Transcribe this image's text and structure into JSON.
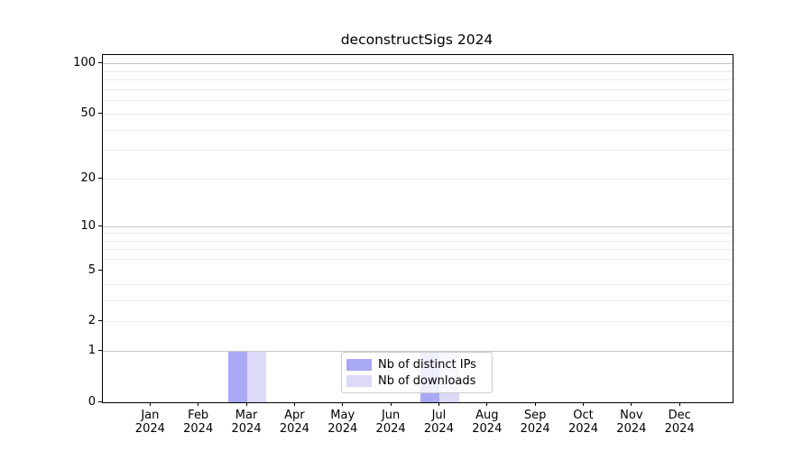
{
  "chart_data": {
    "type": "bar",
    "title": "deconstructSigs 2024",
    "categories": [
      "Jan",
      "Feb",
      "Mar",
      "Apr",
      "May",
      "Jun",
      "Jul",
      "Aug",
      "Sep",
      "Oct",
      "Nov",
      "Dec"
    ],
    "year_label": "2024",
    "series": [
      {
        "name": "Nb of distinct IPs",
        "color": "#a9a8f4",
        "values": [
          0,
          0,
          1,
          0,
          0,
          0,
          1,
          0,
          0,
          0,
          0,
          0
        ]
      },
      {
        "name": "Nb of downloads",
        "color": "#dcdaf8",
        "values": [
          0,
          0,
          1,
          0,
          0,
          0,
          1,
          0,
          0,
          0,
          0,
          0
        ]
      }
    ],
    "y_axis": {
      "scale": "log1p",
      "tick_values": [
        0,
        1,
        2,
        5,
        10,
        20,
        50,
        100
      ],
      "major_gridlines": [
        1,
        10,
        100
      ],
      "minor_gridlines": [
        2,
        3,
        4,
        6,
        7,
        8,
        9,
        20,
        30,
        40,
        50,
        60,
        70,
        80,
        90
      ],
      "ylim": [
        0,
        113
      ]
    },
    "legend": {
      "position": "lower-center",
      "entries": [
        "Nb of distinct IPs",
        "Nb of downloads"
      ]
    },
    "grid": true,
    "colors": {
      "major_grid": "#c6c6c6",
      "minor_grid": "#ebebeb",
      "spine": "#000000",
      "text": "#000000",
      "background": "#ffffff"
    }
  }
}
